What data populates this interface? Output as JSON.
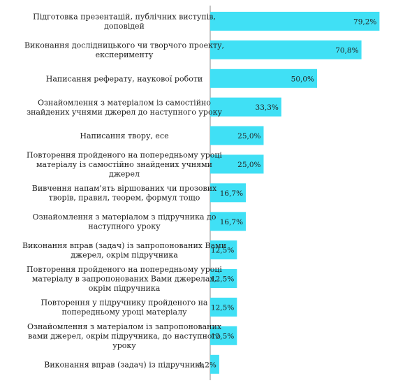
{
  "chart_data": {
    "type": "bar",
    "orientation": "horizontal",
    "categories": [
      [
        "Підготовка презентацій, публічних виступів,",
        "доповідей"
      ],
      [
        "Виконання дослідницького чи творчого проекту,",
        "експерименту"
      ],
      [
        "Написання реферату, наукової роботи"
      ],
      [
        "Ознайомлення з матеріалом із самостійно",
        "знайдених учнями джерел до наступного уроку"
      ],
      [
        "Написання твору, есе"
      ],
      [
        "Повторення пройденого на попередньому уроці",
        "матеріалу із самостійно знайдених учнями",
        "джерел"
      ],
      [
        "Вивчення напам'ять віршованих чи прозових",
        "творів, правил, теорем, формул тощо"
      ],
      [
        "Ознайомлення з матеріалом з підручника до",
        "наступного уроку"
      ],
      [
        "Виконання вправ (задач) із запропонованих Вами",
        "джерел, окрім підручника"
      ],
      [
        "Повторення пройденого на попередньому уроці",
        "матеріалу в запропонованих Вами джерелах,",
        "окрім підручника"
      ],
      [
        "Повторення у підручнику пройденого на",
        "попередньому уроці матеріалу"
      ],
      [
        "Ознайомлення з матеріалом із запропонованих",
        "вами джерел, окрім підручника, до наступного",
        "уроку"
      ],
      [
        "Виконання вправ (задач) із підручника"
      ]
    ],
    "values": [
      79.2,
      70.8,
      50.0,
      33.3,
      25.0,
      25.0,
      16.7,
      16.7,
      12.5,
      12.5,
      12.5,
      12.5,
      4.2
    ],
    "value_labels": [
      "79,2%",
      "70,8%",
      "50,0%",
      "33,3%",
      "25,0%",
      "25,0%",
      "16,7%",
      "16,7%",
      "12,5%",
      "12,5%",
      "12,5%",
      "12,5%",
      "4,2%"
    ],
    "xlim": [
      0,
      100
    ],
    "grid": false,
    "bar_color": "#40e0f5",
    "axis_color": "#888888"
  }
}
